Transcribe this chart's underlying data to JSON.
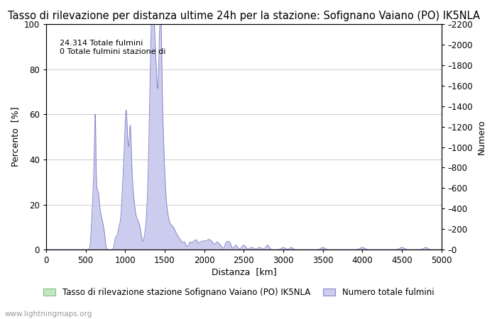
{
  "title": "Tasso di rilevazione per distanza ultime 24h per la stazione: Sofignano Vaiano (PO) IK5NLA",
  "xlabel": "Distanza  [km]",
  "ylabel_left": "Percento  [%]",
  "ylabel_right": "Numero",
  "annotation_line1": "24.314 Totale fulmini",
  "annotation_line2": "0 Totale fulmini stazione di",
  "watermark": "www.lightningmaps.org",
  "xlim": [
    0,
    5000
  ],
  "ylim_left": [
    0,
    100
  ],
  "ylim_right": [
    0,
    2200
  ],
  "xticks": [
    0,
    500,
    1000,
    1500,
    2000,
    2500,
    3000,
    3500,
    4000,
    4500,
    5000
  ],
  "yticks_left": [
    0,
    20,
    40,
    60,
    80,
    100
  ],
  "yticks_right": [
    0,
    200,
    400,
    600,
    800,
    1000,
    1200,
    1400,
    1600,
    1800,
    2000,
    2200
  ],
  "right_tick_labels": [
    "–0",
    "–200",
    "–400",
    "–600",
    "–800",
    "–1000",
    "–1200",
    "–1400",
    "–1600",
    "–1800",
    "–2000",
    "–2200"
  ],
  "legend_label_green": "Tasso di rilevazione stazione Sofignano Vaiano (PO) IK5NLA",
  "legend_label_blue": "Numero totale fulmini",
  "color_blue_line": "#8888cc",
  "color_blue_fill": "#ccccee",
  "color_green_fill": "#c0e8c0",
  "color_green_line": "#88bb88",
  "background_color": "#ffffff",
  "grid_color": "#cccccc",
  "title_fontsize": 10.5,
  "axis_fontsize": 9,
  "tick_fontsize": 8.5,
  "legend_fontsize": 8.5
}
